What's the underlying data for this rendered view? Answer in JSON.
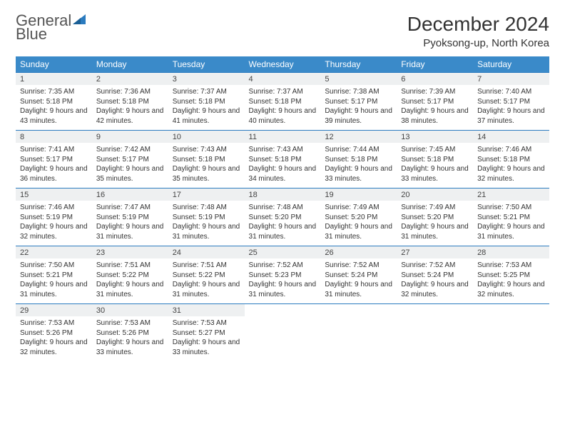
{
  "logo": {
    "text_general": "General",
    "text_blue": "Blue"
  },
  "title": "December 2024",
  "location": "Pyoksong-up, North Korea",
  "colors": {
    "header_bg": "#3a8ac9",
    "border": "#2b7bbf",
    "daynum_bg": "#eef0f1",
    "text": "#333333"
  },
  "day_labels": [
    "Sunday",
    "Monday",
    "Tuesday",
    "Wednesday",
    "Thursday",
    "Friday",
    "Saturday"
  ],
  "weeks": [
    [
      {
        "n": "1",
        "sr": "7:35 AM",
        "ss": "5:18 PM",
        "dl": "9 hours and 43 minutes."
      },
      {
        "n": "2",
        "sr": "7:36 AM",
        "ss": "5:18 PM",
        "dl": "9 hours and 42 minutes."
      },
      {
        "n": "3",
        "sr": "7:37 AM",
        "ss": "5:18 PM",
        "dl": "9 hours and 41 minutes."
      },
      {
        "n": "4",
        "sr": "7:37 AM",
        "ss": "5:18 PM",
        "dl": "9 hours and 40 minutes."
      },
      {
        "n": "5",
        "sr": "7:38 AM",
        "ss": "5:17 PM",
        "dl": "9 hours and 39 minutes."
      },
      {
        "n": "6",
        "sr": "7:39 AM",
        "ss": "5:17 PM",
        "dl": "9 hours and 38 minutes."
      },
      {
        "n": "7",
        "sr": "7:40 AM",
        "ss": "5:17 PM",
        "dl": "9 hours and 37 minutes."
      }
    ],
    [
      {
        "n": "8",
        "sr": "7:41 AM",
        "ss": "5:17 PM",
        "dl": "9 hours and 36 minutes."
      },
      {
        "n": "9",
        "sr": "7:42 AM",
        "ss": "5:17 PM",
        "dl": "9 hours and 35 minutes."
      },
      {
        "n": "10",
        "sr": "7:43 AM",
        "ss": "5:18 PM",
        "dl": "9 hours and 35 minutes."
      },
      {
        "n": "11",
        "sr": "7:43 AM",
        "ss": "5:18 PM",
        "dl": "9 hours and 34 minutes."
      },
      {
        "n": "12",
        "sr": "7:44 AM",
        "ss": "5:18 PM",
        "dl": "9 hours and 33 minutes."
      },
      {
        "n": "13",
        "sr": "7:45 AM",
        "ss": "5:18 PM",
        "dl": "9 hours and 33 minutes."
      },
      {
        "n": "14",
        "sr": "7:46 AM",
        "ss": "5:18 PM",
        "dl": "9 hours and 32 minutes."
      }
    ],
    [
      {
        "n": "15",
        "sr": "7:46 AM",
        "ss": "5:19 PM",
        "dl": "9 hours and 32 minutes."
      },
      {
        "n": "16",
        "sr": "7:47 AM",
        "ss": "5:19 PM",
        "dl": "9 hours and 31 minutes."
      },
      {
        "n": "17",
        "sr": "7:48 AM",
        "ss": "5:19 PM",
        "dl": "9 hours and 31 minutes."
      },
      {
        "n": "18",
        "sr": "7:48 AM",
        "ss": "5:20 PM",
        "dl": "9 hours and 31 minutes."
      },
      {
        "n": "19",
        "sr": "7:49 AM",
        "ss": "5:20 PM",
        "dl": "9 hours and 31 minutes."
      },
      {
        "n": "20",
        "sr": "7:49 AM",
        "ss": "5:20 PM",
        "dl": "9 hours and 31 minutes."
      },
      {
        "n": "21",
        "sr": "7:50 AM",
        "ss": "5:21 PM",
        "dl": "9 hours and 31 minutes."
      }
    ],
    [
      {
        "n": "22",
        "sr": "7:50 AM",
        "ss": "5:21 PM",
        "dl": "9 hours and 31 minutes."
      },
      {
        "n": "23",
        "sr": "7:51 AM",
        "ss": "5:22 PM",
        "dl": "9 hours and 31 minutes."
      },
      {
        "n": "24",
        "sr": "7:51 AM",
        "ss": "5:22 PM",
        "dl": "9 hours and 31 minutes."
      },
      {
        "n": "25",
        "sr": "7:52 AM",
        "ss": "5:23 PM",
        "dl": "9 hours and 31 minutes."
      },
      {
        "n": "26",
        "sr": "7:52 AM",
        "ss": "5:24 PM",
        "dl": "9 hours and 31 minutes."
      },
      {
        "n": "27",
        "sr": "7:52 AM",
        "ss": "5:24 PM",
        "dl": "9 hours and 32 minutes."
      },
      {
        "n": "28",
        "sr": "7:53 AM",
        "ss": "5:25 PM",
        "dl": "9 hours and 32 minutes."
      }
    ],
    [
      {
        "n": "29",
        "sr": "7:53 AM",
        "ss": "5:26 PM",
        "dl": "9 hours and 32 minutes."
      },
      {
        "n": "30",
        "sr": "7:53 AM",
        "ss": "5:26 PM",
        "dl": "9 hours and 33 minutes."
      },
      {
        "n": "31",
        "sr": "7:53 AM",
        "ss": "5:27 PM",
        "dl": "9 hours and 33 minutes."
      },
      null,
      null,
      null,
      null
    ]
  ],
  "labels": {
    "sunrise": "Sunrise:",
    "sunset": "Sunset:",
    "daylight": "Daylight:"
  }
}
